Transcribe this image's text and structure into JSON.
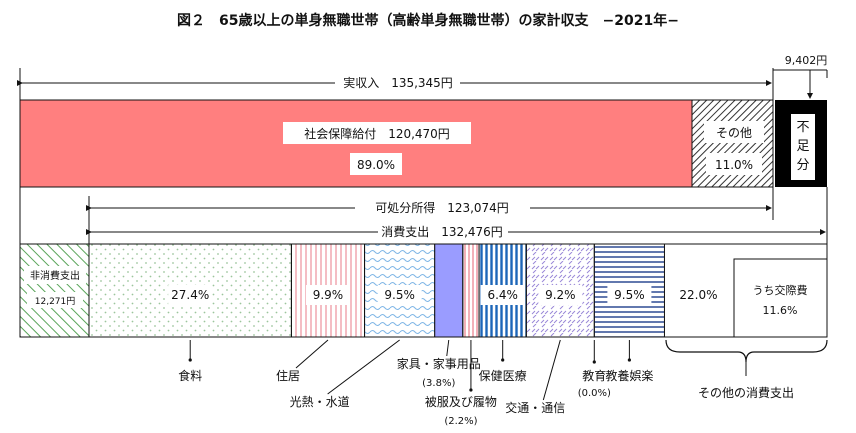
{
  "title": "図２　65歳以上の単身無職世帯（高齢単身無職世帯）の家計収支　−2021年−",
  "chart_data": {
    "type": "bar",
    "income": {
      "label": "実収入　135,345円",
      "segments": [
        {
          "name": "社会保障給付",
          "label": "社会保障給付　120,470円",
          "percent": 89.0,
          "percent_label": "89.0%"
        },
        {
          "name": "その他",
          "label": "その他",
          "percent": 11.0,
          "percent_label": "11.0%"
        }
      ],
      "shortfall": {
        "label": "不足分",
        "value_label": "9,402円"
      }
    },
    "disposable": {
      "label": "可処分所得　123,074円"
    },
    "expenditure": {
      "label": "消費支出　132,476円",
      "non_consumption": {
        "label": "非消費支出",
        "value_label": "12,271円"
      },
      "items": [
        {
          "name": "食料",
          "percent": 27.4,
          "percent_label": "27.4%"
        },
        {
          "name": "住居",
          "percent": 9.9,
          "percent_label": "9.9%"
        },
        {
          "name": "光熱・水道",
          "percent": 9.5,
          "percent_label": "9.5%"
        },
        {
          "name": "家具・家事用品",
          "percent": 3.8,
          "percent_label": "(3.8%)"
        },
        {
          "name": "被服及び履物",
          "percent": 2.2,
          "percent_label": "(2.2%)"
        },
        {
          "name": "保健医療",
          "percent": 6.4,
          "percent_label": "6.4%"
        },
        {
          "name": "交通・通信",
          "percent": 9.2,
          "percent_label": "9.2%"
        },
        {
          "name": "教育",
          "percent": 0.0,
          "percent_label": "(0.0%)"
        },
        {
          "name": "教養娯楽",
          "percent": 9.5,
          "percent_label": "9.5%"
        },
        {
          "name": "その他の消費支出",
          "percent": 22.0,
          "percent_label": "22.0%",
          "sub": {
            "name": "うち交際費",
            "percent_label": "11.6%"
          }
        }
      ]
    }
  },
  "colors": {
    "social_security": "#ff7f7f",
    "shortfall": "#000000",
    "hatch_green": "#5aa55a",
    "dots_green": "#9cc59c",
    "stripe_red": "#e97b8a",
    "blue_light": "#7fb6e6",
    "purple": "#9a9cff",
    "stripe_blue": "#1d66b8",
    "cross_purple": "#9a88d8",
    "stripe_navy": "#1f3d8c"
  }
}
